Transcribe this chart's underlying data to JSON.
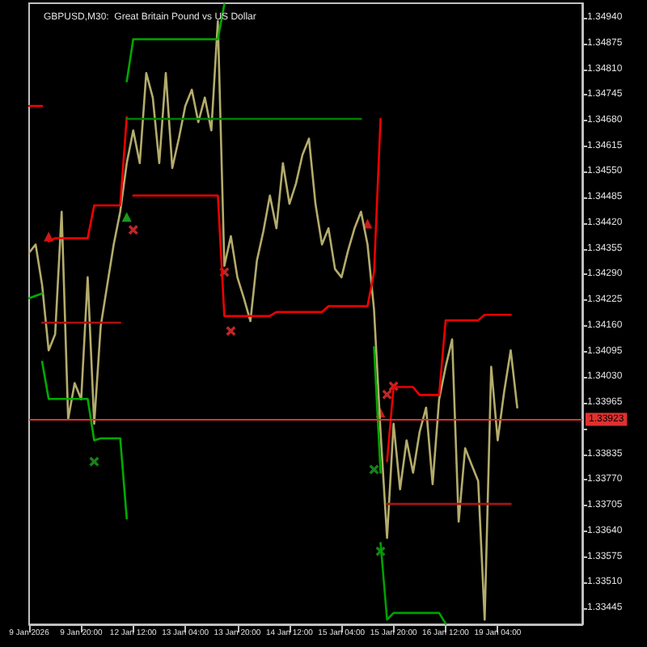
{
  "chart_data": {
    "type": "line",
    "title": "GBPUSD,M30:  Great Britain Pound vs US Dollar",
    "categories": [
      "9 Jan 2026",
      null,
      null,
      null,
      null,
      null,
      null,
      null,
      "9 Jan 20:00",
      null,
      null,
      null,
      null,
      null,
      null,
      null,
      "12 Jan 12:00",
      null,
      null,
      null,
      null,
      null,
      null,
      null,
      "13 Jan 04:00",
      null,
      null,
      null,
      null,
      null,
      null,
      null,
      "13 Jan 20:00",
      null,
      null,
      null,
      null,
      null,
      null,
      null,
      "14 Jan 12:00",
      null,
      null,
      null,
      null,
      null,
      null,
      null,
      "15 Jan 04:00",
      null,
      null,
      null,
      null,
      null,
      null,
      null,
      "15 Jan 20:00",
      null,
      null,
      null,
      null,
      null,
      null,
      null,
      "16 Jan 12:00",
      null,
      null,
      null,
      null,
      null,
      null,
      null,
      "19 Jan 04:00",
      null,
      null,
      null,
      null,
      null,
      null,
      null,
      null,
      null,
      null,
      null,
      null,
      null
    ],
    "ylim": [
      1.33404,
      1.34977
    ],
    "yticks": [
      {
        "value": 1.3494,
        "label": "1.34940"
      },
      {
        "value": 1.34875,
        "label": "1.34875"
      },
      {
        "value": 1.3481,
        "label": "1.34810"
      },
      {
        "value": 1.34745,
        "label": "1.34745"
      },
      {
        "value": 1.3468,
        "label": "1.34680"
      },
      {
        "value": 1.34615,
        "label": "1.34615"
      },
      {
        "value": 1.3455,
        "label": "1.34550"
      },
      {
        "value": 1.34485,
        "label": "1.34485"
      },
      {
        "value": 1.3442,
        "label": "1.34420"
      },
      {
        "value": 1.34355,
        "label": "1.34355"
      },
      {
        "value": 1.3429,
        "label": "1.34290"
      },
      {
        "value": 1.34225,
        "label": "1.34225"
      },
      {
        "value": 1.3416,
        "label": "1.34160"
      },
      {
        "value": 1.34095,
        "label": "1.34095"
      },
      {
        "value": 1.3403,
        "label": "1.34030"
      },
      {
        "value": 1.33965,
        "label": "1.33965"
      },
      {
        "value": 1.339,
        "label": null
      },
      {
        "value": 1.33835,
        "label": "1.33835"
      },
      {
        "value": 1.3377,
        "label": "1.33770"
      },
      {
        "value": 1.33705,
        "label": "1.33705"
      },
      {
        "value": 1.3364,
        "label": "1.33640"
      },
      {
        "value": 1.33575,
        "label": "1.33575"
      },
      {
        "value": 1.3351,
        "label": "1.33510"
      },
      {
        "value": 1.33445,
        "label": "1.33445"
      }
    ],
    "grid": false,
    "ref_lines": [
      {
        "axis": "y",
        "value": 1.33923,
        "label": "1.33923",
        "color": "#e03030"
      }
    ],
    "series": [
      {
        "color": "#b4ac6c",
        "marker": "none",
        "values": [
          1.34345,
          1.34366,
          1.34263,
          1.34098,
          1.34139,
          1.34449,
          1.33924,
          1.34015,
          1.33974,
          1.34283,
          1.33912,
          1.34159,
          1.34263,
          1.34366,
          1.34449,
          1.34572,
          1.34655,
          1.34572,
          1.348,
          1.34738,
          1.34572,
          1.348,
          1.3456,
          1.34634,
          1.34717,
          1.34758,
          1.34676,
          1.34738,
          1.34655,
          1.34932,
          1.34312,
          1.34387,
          1.34283,
          1.3423,
          1.34172,
          1.34325,
          1.344,
          1.3449,
          1.34407,
          1.34572,
          1.34469,
          1.3452,
          1.34593,
          1.34634,
          1.34469,
          1.34366,
          1.34407,
          1.34304,
          1.34283,
          1.3435,
          1.34407,
          1.34449,
          1.34366,
          1.34201,
          1.33891,
          1.33623,
          1.33912,
          1.33746,
          1.3387,
          1.33788,
          1.33891,
          1.33953,
          1.33759,
          1.33974,
          1.34056,
          1.34126,
          1.33664,
          1.3385,
          1.33808,
          1.33767,
          1.33416,
          1.34056,
          1.3387,
          1.33994,
          1.34098,
          1.33953,
          null,
          null,
          null,
          null,
          null,
          null,
          null,
          null,
          null,
          null
        ]
      },
      {
        "color": "#ff0000",
        "marker": "none",
        "values": [
          1.34717,
          1.34717,
          1.34717,
          null,
          null,
          null,
          null,
          null,
          null,
          null,
          null,
          null,
          null,
          null,
          null,
          null,
          null,
          null,
          null,
          null,
          null,
          null,
          null,
          null,
          null,
          null,
          null,
          null,
          null,
          null,
          null,
          null,
          null,
          null,
          null,
          null,
          null,
          null,
          null,
          null,
          null,
          null,
          null,
          null,
          null,
          null,
          null,
          null,
          null,
          null,
          null,
          null,
          null,
          null,
          null,
          null,
          null,
          null,
          null,
          null,
          null,
          null,
          null,
          null,
          null,
          null,
          null,
          null,
          null,
          null,
          null,
          null,
          null,
          null,
          null,
          null,
          null,
          null,
          null,
          null,
          null,
          null,
          null,
          null,
          null,
          null
        ]
      },
      {
        "color": "#fa0000",
        "marker": "none",
        "values": [
          null,
          null,
          null,
          1.34374,
          1.34382,
          1.34382,
          1.34382,
          1.34382,
          1.34382,
          1.34382,
          1.34465,
          1.34465,
          1.34465,
          1.34465,
          1.34465,
          1.34688,
          null,
          null,
          null,
          null,
          null,
          null,
          null,
          null,
          null,
          null,
          null,
          null,
          null,
          null,
          null,
          null,
          null,
          null,
          null,
          null,
          null,
          null,
          null,
          null,
          null,
          null,
          null,
          null,
          null,
          null,
          null,
          null,
          null,
          null,
          null,
          null,
          null,
          null,
          null,
          null,
          null,
          null,
          null,
          null,
          null,
          null,
          null,
          null,
          null,
          null,
          null,
          null,
          null,
          null,
          null,
          null,
          null,
          null,
          null,
          null,
          null,
          null,
          null,
          null,
          null,
          null,
          null,
          null,
          null,
          null
        ]
      },
      {
        "color": "#f40000",
        "marker": "none",
        "values": [
          null,
          null,
          null,
          null,
          null,
          null,
          null,
          null,
          null,
          null,
          null,
          null,
          null,
          null,
          null,
          null,
          1.3449,
          1.3449,
          1.3449,
          1.3449,
          1.3449,
          1.3449,
          1.3449,
          1.3449,
          1.3449,
          1.3449,
          1.3449,
          1.3449,
          1.3449,
          1.3449,
          1.34185,
          1.34185,
          1.34185,
          1.34185,
          1.34185,
          1.34185,
          1.34185,
          1.34185,
          1.34195,
          1.34195,
          1.34195,
          1.34195,
          1.34195,
          1.34195,
          1.34195,
          1.34195,
          1.3421,
          1.3421,
          1.3421,
          1.3421,
          1.3421,
          1.3421,
          1.3421,
          1.34296,
          1.34684,
          null,
          null,
          null,
          null,
          null,
          null,
          null,
          null,
          null,
          null,
          null,
          null,
          null,
          null,
          null,
          null,
          null,
          null,
          null,
          null,
          null,
          null,
          null,
          null,
          null,
          null,
          null,
          null,
          null,
          null,
          null
        ]
      },
      {
        "color": "#ee0000",
        "marker": "none",
        "values": [
          null,
          null,
          null,
          null,
          null,
          null,
          null,
          null,
          null,
          null,
          null,
          null,
          null,
          null,
          null,
          null,
          null,
          null,
          null,
          null,
          null,
          null,
          null,
          null,
          null,
          null,
          null,
          null,
          null,
          null,
          null,
          null,
          null,
          null,
          null,
          null,
          null,
          null,
          null,
          null,
          null,
          null,
          null,
          null,
          null,
          null,
          null,
          null,
          null,
          null,
          null,
          null,
          null,
          null,
          null,
          1.33817,
          1.34005,
          1.34005,
          1.34005,
          1.34005,
          1.33985,
          1.33985,
          1.33985,
          1.33985,
          1.34174,
          1.34174,
          1.34174,
          1.34174,
          1.34174,
          1.34174,
          1.34188,
          1.34188,
          1.34188,
          1.34188,
          1.34188,
          null,
          null,
          null,
          null,
          null,
          null,
          null,
          null,
          null,
          null,
          null
        ]
      },
      {
        "color": "#00b000",
        "marker": "none",
        "values": [
          1.3423,
          1.34236,
          1.34242,
          null,
          null,
          null,
          null,
          null,
          null,
          null,
          null,
          null,
          null,
          null,
          null,
          null,
          null,
          null,
          null,
          null,
          null,
          null,
          null,
          null,
          null,
          null,
          null,
          null,
          null,
          null,
          null,
          null,
          null,
          null,
          null,
          null,
          null,
          null,
          null,
          null,
          null,
          null,
          null,
          null,
          null,
          null,
          null,
          null,
          null,
          null,
          null,
          null,
          null,
          null,
          null,
          null,
          null,
          null,
          null,
          null,
          null,
          null,
          null,
          null,
          null,
          null,
          null,
          null,
          null,
          null,
          null,
          null,
          null,
          null,
          null,
          null,
          null,
          null,
          null,
          null,
          null,
          null,
          null,
          null,
          null,
          null
        ]
      },
      {
        "color": "#00ac00",
        "marker": "none",
        "values": [
          null,
          null,
          1.34069,
          1.33975,
          1.33975,
          1.33975,
          1.33975,
          1.33975,
          1.33975,
          1.33975,
          1.3387,
          1.33875,
          1.33875,
          1.33875,
          1.33875,
          1.33672,
          null,
          null,
          null,
          null,
          null,
          null,
          null,
          null,
          null,
          null,
          null,
          null,
          null,
          null,
          null,
          null,
          null,
          null,
          null,
          null,
          null,
          null,
          null,
          null,
          null,
          null,
          null,
          null,
          null,
          null,
          null,
          null,
          null,
          null,
          null,
          null,
          null,
          null,
          null,
          null,
          null,
          null,
          null,
          null,
          null,
          null,
          null,
          null,
          null,
          null,
          null,
          null,
          null,
          null,
          null,
          null,
          null,
          null,
          null,
          null,
          null,
          null,
          null,
          null,
          null,
          null,
          null,
          null,
          null,
          null
        ]
      },
      {
        "color": "#00a800",
        "marker": "none",
        "values": [
          null,
          null,
          null,
          null,
          null,
          null,
          null,
          null,
          null,
          null,
          null,
          null,
          null,
          null,
          null,
          1.34779,
          1.34886,
          1.34886,
          1.34886,
          1.34886,
          1.34886,
          1.34886,
          1.34886,
          1.34886,
          1.34886,
          1.34886,
          1.34886,
          1.34886,
          1.34886,
          1.34886,
          1.34975,
          null,
          null,
          null,
          null,
          null,
          null,
          null,
          null,
          null,
          null,
          null,
          null,
          null,
          null,
          null,
          null,
          null,
          null,
          null,
          null,
          null,
          null,
          null,
          null,
          null,
          null,
          null,
          null,
          null,
          null,
          null,
          null,
          null,
          null,
          null,
          null,
          null,
          null,
          null,
          null,
          null,
          null,
          null,
          null,
          null,
          null,
          null,
          null,
          null,
          null,
          null,
          null,
          null,
          null,
          null
        ]
      },
      {
        "color": "#00a400",
        "marker": "none",
        "values": [
          null,
          null,
          null,
          null,
          null,
          null,
          null,
          null,
          null,
          null,
          null,
          null,
          null,
          null,
          null,
          null,
          null,
          null,
          null,
          null,
          null,
          null,
          null,
          null,
          null,
          null,
          null,
          null,
          null,
          null,
          null,
          null,
          null,
          null,
          null,
          null,
          null,
          null,
          null,
          null,
          null,
          null,
          null,
          null,
          null,
          null,
          null,
          null,
          null,
          null,
          null,
          null,
          null,
          1.34106,
          1.33788,
          null,
          null,
          null,
          null,
          null,
          null,
          null,
          null,
          null,
          null,
          null,
          null,
          null,
          null,
          null,
          null,
          null,
          null,
          null,
          null,
          null,
          null,
          null,
          null,
          null,
          null,
          null,
          null,
          null,
          null,
          null
        ]
      },
      {
        "color": "#00a000",
        "marker": "none",
        "values": [
          null,
          null,
          null,
          null,
          null,
          null,
          null,
          null,
          null,
          null,
          null,
          null,
          null,
          null,
          null,
          null,
          null,
          null,
          null,
          null,
          null,
          null,
          null,
          null,
          null,
          null,
          null,
          null,
          null,
          null,
          null,
          null,
          null,
          null,
          null,
          null,
          null,
          null,
          null,
          null,
          null,
          null,
          null,
          null,
          null,
          null,
          null,
          null,
          null,
          null,
          null,
          null,
          null,
          null,
          1.3361,
          1.33416,
          1.33433,
          1.33433,
          1.33433,
          1.33433,
          1.33433,
          1.33433,
          1.33433,
          1.33433,
          1.33406,
          null,
          null,
          null,
          null,
          null,
          null,
          null,
          null,
          null,
          null,
          null,
          null,
          null,
          null,
          null,
          null,
          null,
          null,
          null,
          null,
          null
        ]
      },
      {
        "color": "#b01010",
        "marker": "none",
        "values": [
          null,
          null,
          1.34168,
          1.34168,
          1.34168,
          1.34168,
          1.34168,
          1.34168,
          1.34168,
          1.34168,
          1.34168,
          1.34168,
          1.34168,
          1.34168,
          1.34168,
          null,
          null,
          null,
          null,
          null,
          null,
          null,
          null,
          null,
          null,
          null,
          null,
          null,
          null,
          null,
          null,
          null,
          null,
          null,
          null,
          null,
          null,
          null,
          null,
          null,
          null,
          null,
          null,
          null,
          null,
          null,
          null,
          null,
          null,
          null,
          null,
          null,
          null,
          null,
          null,
          null,
          null,
          null,
          null,
          null,
          null,
          null,
          null,
          null,
          null,
          null,
          null,
          null,
          null,
          null,
          null,
          null,
          null,
          null,
          null,
          null,
          null,
          null,
          null,
          null,
          null,
          null,
          null,
          null,
          null,
          null
        ]
      },
      {
        "color": "#a81414",
        "marker": "none",
        "values": [
          null,
          null,
          null,
          null,
          null,
          null,
          null,
          null,
          null,
          null,
          null,
          null,
          null,
          null,
          null,
          null,
          null,
          null,
          null,
          null,
          null,
          null,
          null,
          null,
          null,
          null,
          null,
          null,
          null,
          null,
          null,
          null,
          null,
          null,
          null,
          null,
          null,
          null,
          null,
          null,
          null,
          null,
          null,
          null,
          null,
          null,
          null,
          null,
          null,
          null,
          null,
          null,
          null,
          null,
          null,
          1.33709,
          1.33709,
          1.33709,
          1.33709,
          1.33709,
          1.33709,
          1.33709,
          1.33709,
          1.33709,
          1.33709,
          1.33709,
          1.33709,
          1.33709,
          1.33709,
          1.33709,
          1.33709,
          1.33709,
          1.33709,
          1.33709,
          1.33709,
          null,
          null,
          null,
          null,
          null,
          null,
          null,
          null,
          null,
          null,
          null
        ]
      },
      {
        "color": "#008000",
        "marker": "none",
        "values": [
          null,
          null,
          null,
          null,
          null,
          null,
          null,
          null,
          null,
          null,
          null,
          null,
          null,
          null,
          null,
          1.34684,
          1.34684,
          1.34684,
          1.34684,
          1.34684,
          1.34684,
          1.34684,
          1.34684,
          1.34684,
          1.34684,
          1.34684,
          1.34684,
          1.34684,
          1.34684,
          1.34684,
          1.34684,
          1.34684,
          1.34684,
          1.34684,
          1.34684,
          1.34684,
          1.34684,
          1.34684,
          1.34684,
          1.34684,
          1.34684,
          1.34684,
          1.34684,
          1.34684,
          1.34684,
          1.34684,
          1.34684,
          1.34684,
          1.34684,
          1.34684,
          1.34684,
          1.34684,
          null,
          null,
          null,
          null,
          null,
          null,
          null,
          null,
          null,
          null,
          null,
          null,
          null,
          null,
          null,
          null,
          null,
          null,
          null,
          null,
          null,
          null,
          null,
          null,
          null,
          null,
          null,
          null,
          null,
          null,
          null,
          null,
          null,
          null
        ]
      },
      {
        "type": "scatter",
        "color": "#ff2020",
        "marker": "triangle",
        "values": [
          null,
          null,
          null,
          1.34386,
          null,
          null,
          null,
          null,
          null,
          null,
          null,
          null,
          null,
          null,
          null,
          null,
          null,
          null,
          null,
          null,
          null,
          null,
          null,
          null,
          null,
          null,
          null,
          null,
          null,
          null,
          null,
          null,
          null,
          null,
          null,
          null,
          null,
          null,
          null,
          null,
          null,
          null,
          null,
          null,
          null,
          null,
          null,
          null,
          null,
          null,
          null,
          null,
          1.34419,
          null,
          1.3394,
          null,
          null,
          null,
          null,
          null,
          null,
          null,
          null,
          null,
          null,
          null,
          null,
          null,
          null,
          null,
          null,
          null,
          null,
          null,
          null,
          null,
          null,
          null,
          null,
          null,
          null,
          null,
          null,
          null,
          null,
          null
        ]
      },
      {
        "type": "scatter",
        "color": "#20c020",
        "marker": "triangle",
        "values": [
          null,
          null,
          null,
          null,
          null,
          null,
          null,
          null,
          null,
          null,
          null,
          null,
          null,
          null,
          null,
          1.34436,
          null,
          null,
          null,
          null,
          null,
          null,
          null,
          null,
          null,
          null,
          null,
          null,
          null,
          null,
          null,
          null,
          null,
          null,
          null,
          null,
          null,
          null,
          null,
          null,
          null,
          null,
          null,
          null,
          null,
          null,
          null,
          null,
          null,
          null,
          null,
          null,
          null,
          null,
          null,
          null,
          null,
          null,
          null,
          null,
          null,
          null,
          null,
          null,
          null,
          null,
          null,
          null,
          null,
          null,
          null,
          null,
          null,
          null,
          null,
          null,
          null,
          null,
          null,
          null,
          null,
          null,
          null,
          null,
          null,
          null
        ]
      },
      {
        "type": "scatter",
        "color": "#f03030",
        "marker": "cross",
        "values": [
          null,
          null,
          null,
          null,
          null,
          null,
          null,
          null,
          null,
          null,
          null,
          null,
          null,
          null,
          null,
          null,
          1.34403,
          null,
          null,
          null,
          null,
          null,
          null,
          null,
          null,
          null,
          null,
          null,
          null,
          null,
          1.34296,
          1.34147,
          null,
          null,
          null,
          null,
          null,
          null,
          null,
          null,
          null,
          null,
          null,
          null,
          null,
          null,
          null,
          null,
          null,
          null,
          null,
          null,
          null,
          null,
          null,
          1.33986,
          1.34007,
          null,
          null,
          null,
          null,
          null,
          null,
          null,
          null,
          null,
          null,
          null,
          null,
          null,
          null,
          null,
          null,
          null,
          null,
          null,
          null,
          null,
          null,
          null,
          null,
          null,
          null,
          null,
          null,
          null
        ]
      },
      {
        "type": "scatter",
        "color": "#20a020",
        "marker": "cross",
        "values": [
          null,
          null,
          null,
          null,
          null,
          null,
          null,
          null,
          null,
          null,
          1.33816,
          null,
          null,
          null,
          null,
          null,
          null,
          null,
          null,
          null,
          null,
          null,
          null,
          null,
          null,
          null,
          null,
          null,
          null,
          null,
          null,
          null,
          null,
          null,
          null,
          null,
          null,
          null,
          null,
          null,
          null,
          null,
          null,
          null,
          null,
          null,
          null,
          null,
          null,
          null,
          null,
          null,
          null,
          1.33796,
          1.33589,
          null,
          null,
          null,
          null,
          null,
          null,
          null,
          null,
          null,
          null,
          null,
          null,
          null,
          null,
          null,
          null,
          null,
          null,
          null,
          null,
          null,
          null,
          null,
          null,
          null,
          null,
          null,
          null,
          null,
          null,
          null
        ]
      }
    ]
  }
}
